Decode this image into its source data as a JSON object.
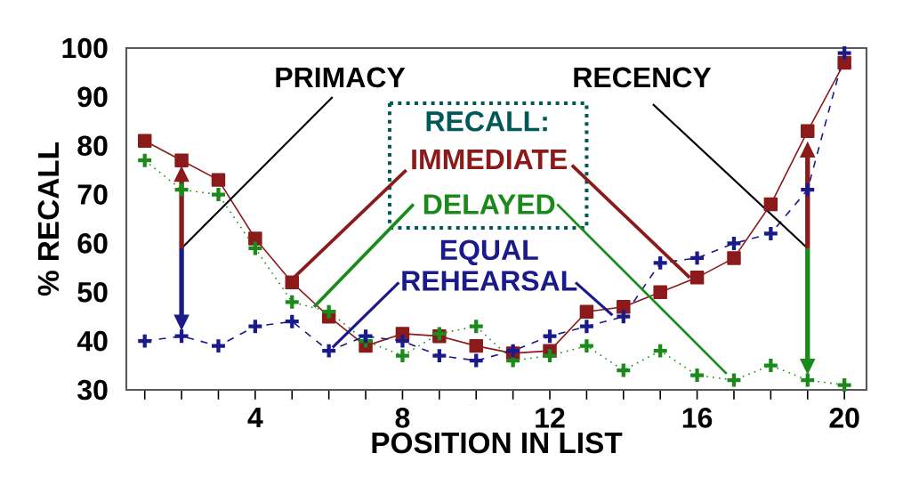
{
  "chart_data": {
    "type": "line",
    "xlabel": "POSITION IN LIST",
    "ylabel": "% RECALL",
    "annotations": [
      "PRIMACY",
      "RECENCY",
      "RECALL:"
    ],
    "x": [
      1,
      2,
      3,
      4,
      5,
      6,
      7,
      8,
      9,
      10,
      11,
      12,
      13,
      14,
      15,
      16,
      17,
      18,
      19,
      20
    ],
    "series": [
      {
        "name": "IMMEDIATE",
        "color": "#8b1a1a",
        "marker": "square",
        "line_style": "solid",
        "values": [
          81,
          77,
          73,
          61,
          52,
          45,
          39,
          41.5,
          41,
          39,
          37.5,
          38,
          46,
          47,
          50,
          53,
          57,
          68,
          83,
          97
        ]
      },
      {
        "name": "DELAYED",
        "color": "#1a8a1a",
        "marker": "cross",
        "line_style": "dotted",
        "values": [
          77,
          71,
          70,
          59,
          48,
          46,
          40,
          37,
          41.5,
          43,
          36,
          37,
          39,
          34,
          38,
          33,
          32,
          35,
          32,
          31
        ]
      },
      {
        "name": "EQUAL REHEARSAL",
        "color": "#1a1a8a",
        "marker": "cross",
        "line_style": "dashed",
        "values": [
          40,
          41,
          39,
          43,
          44,
          38,
          41,
          40,
          37,
          36,
          38,
          41,
          43,
          45,
          56,
          57,
          60,
          62,
          71,
          99
        ]
      }
    ],
    "xlim": [
      0.5,
      20.6
    ],
    "ylim": [
      30,
      100
    ],
    "xticks": [
      {
        "value": 1,
        "label": null
      },
      {
        "value": 2,
        "label": null
      },
      {
        "value": 3,
        "label": null
      },
      4,
      {
        "value": 5,
        "label": null
      },
      {
        "value": 6,
        "label": null
      },
      {
        "value": 7,
        "label": null
      },
      8,
      {
        "value": 9,
        "label": null
      },
      {
        "value": 10,
        "label": null
      },
      {
        "value": 11,
        "label": null
      },
      12,
      {
        "value": 13,
        "label": null
      },
      {
        "value": 14,
        "label": null
      },
      {
        "value": 15,
        "label": null
      },
      16,
      {
        "value": 17,
        "label": null
      },
      {
        "value": 18,
        "label": null
      },
      {
        "value": 19,
        "label": null
      },
      20
    ],
    "yticks": [
      30,
      40,
      50,
      60,
      70,
      80,
      90,
      100
    ],
    "grid": false,
    "legend": false
  }
}
